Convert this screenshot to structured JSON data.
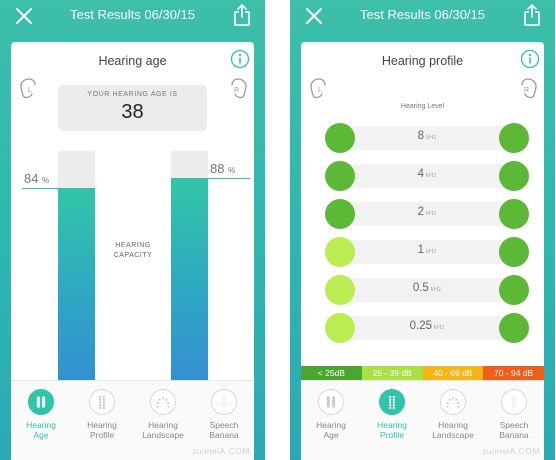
{
  "colors": {
    "accent": "#2ec5a8",
    "dot_green": "#5cb836",
    "dot_light_green": "#b9ed52",
    "legend": [
      "#4aa62e",
      "#a9e043",
      "#f5b417",
      "#ef5f1a"
    ]
  },
  "icons": {
    "close": "close-icon",
    "share": "share-icon",
    "info": "info-icon",
    "ear_left": "ear-left-icon",
    "ear_right": "ear-right-icon",
    "nav": [
      "hearing-age-icon",
      "hearing-profile-icon",
      "hearing-landscape-icon",
      "speech-banana-icon"
    ]
  },
  "ear_labels": {
    "left": "L",
    "right": "R"
  },
  "screens": {
    "age": {
      "title": "Test Results 06/30/15",
      "card_title": "Hearing age",
      "age_label": "YOUR HEARING AGE IS",
      "age_value": "38",
      "capacity_label": "HEARING CAPACITY",
      "left_percent": "84",
      "right_percent": "88",
      "percent_unit": "%",
      "left_level": 0.84,
      "right_level": 0.88
    },
    "profile": {
      "title": "Test Results 06/30/15",
      "card_title": "Hearing profile",
      "level_title": "Hearing Level",
      "unit": "kHz",
      "rows": [
        {
          "freq": "8",
          "left": "green",
          "right": "green"
        },
        {
          "freq": "4",
          "left": "green",
          "right": "green"
        },
        {
          "freq": "2",
          "left": "green",
          "right": "green"
        },
        {
          "freq": "1",
          "left": "light",
          "right": "green"
        },
        {
          "freq": "0.5",
          "left": "light",
          "right": "green"
        },
        {
          "freq": "0.25",
          "left": "light",
          "right": "green"
        }
      ],
      "legend": [
        "< 25dB",
        "25 - 39 dB",
        "40 - 69 dB",
        "70 - 94 dB"
      ]
    }
  },
  "nav": {
    "items": [
      {
        "line1": "Hearing",
        "line2": "Age"
      },
      {
        "line1": "Hearing",
        "line2": "Profile"
      },
      {
        "line1": "Hearing",
        "line2": "Landscape"
      },
      {
        "line1": "Speech",
        "line2": "Banana"
      }
    ]
  },
  "watermark": "zuimeiA.COM"
}
